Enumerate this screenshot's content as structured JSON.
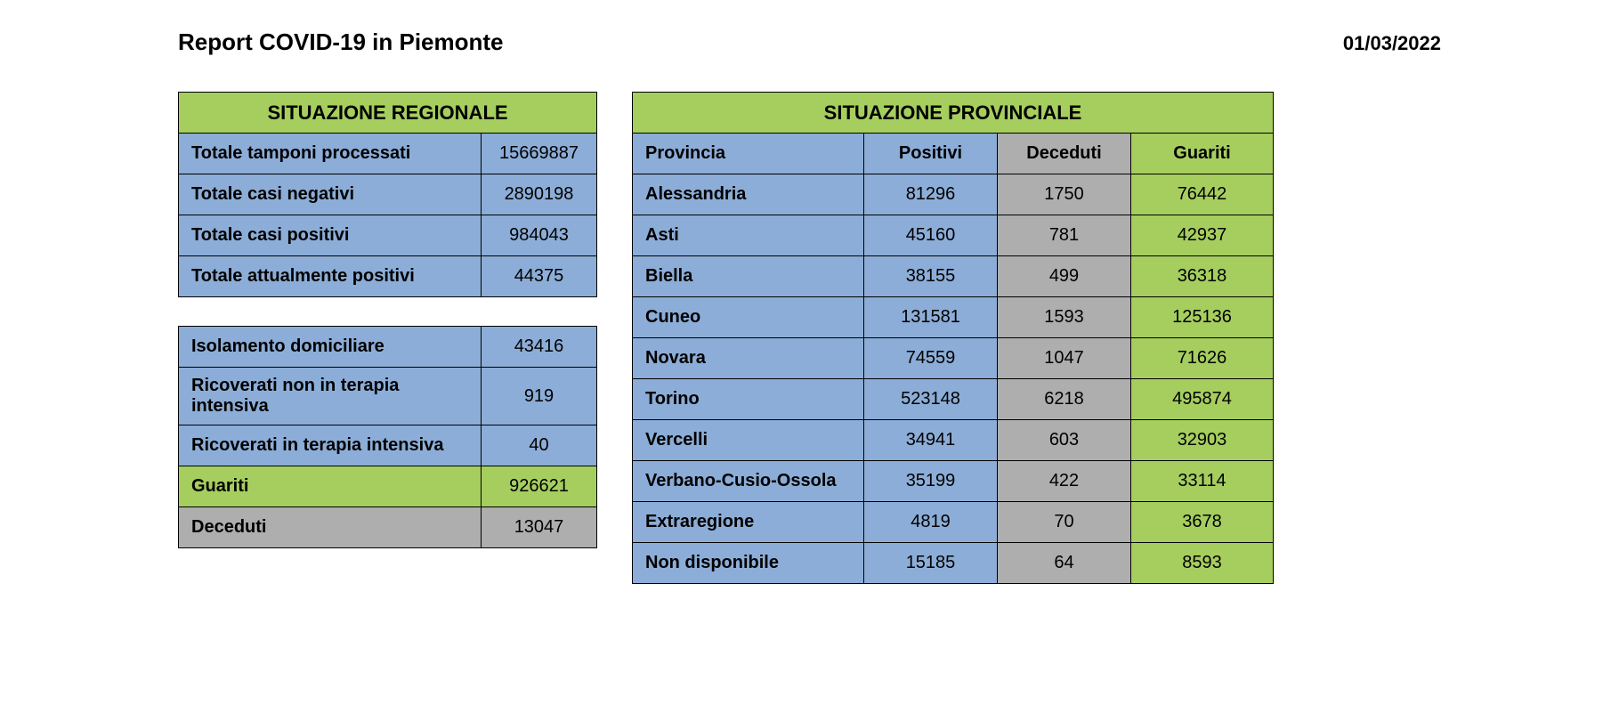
{
  "colors": {
    "green": "#a6ce5f",
    "blue": "#8cadd7",
    "grey": "#aeaeae",
    "border": "#000000"
  },
  "header": {
    "title": "Report COVID-19 in Piemonte",
    "date": "01/03/2022"
  },
  "regional": {
    "section_title": "SITUAZIONE REGIONALE",
    "col_widths": [
      "340px",
      "130px"
    ],
    "rows": [
      {
        "label": "Totale tamponi processati",
        "value": "15669887",
        "label_bg": "blue",
        "val_bg": "blue"
      },
      {
        "label": "Totale casi negativi",
        "value": "2890198",
        "label_bg": "blue",
        "val_bg": "blue"
      },
      {
        "label": "Totale casi positivi",
        "value": "984043",
        "label_bg": "blue",
        "val_bg": "blue"
      },
      {
        "label": "Totale attualmente positivi",
        "value": "44375",
        "label_bg": "blue",
        "val_bg": "blue"
      }
    ]
  },
  "status": {
    "col_widths": [
      "340px",
      "130px"
    ],
    "rows": [
      {
        "label": "Isolamento domiciliare",
        "value": "43416",
        "label_bg": "blue",
        "val_bg": "blue"
      },
      {
        "label": "Ricoverati non in terapia intensiva",
        "value": "919",
        "label_bg": "blue",
        "val_bg": "blue"
      },
      {
        "label": "Ricoverati in terapia intensiva",
        "value": "40",
        "label_bg": "blue",
        "val_bg": "blue"
      },
      {
        "label": "Guariti",
        "value": "926621",
        "label_bg": "green",
        "val_bg": "green"
      },
      {
        "label": "Deceduti",
        "value": "13047",
        "label_bg": "grey",
        "val_bg": "grey"
      }
    ]
  },
  "provincial": {
    "section_title": "SITUAZIONE PROVINCIALE",
    "col_widths": [
      "260px",
      "150px",
      "150px",
      "160px"
    ],
    "columns": [
      {
        "label": "Provincia",
        "bg": "blue",
        "align": "left"
      },
      {
        "label": "Positivi",
        "bg": "blue",
        "align": "center"
      },
      {
        "label": "Deceduti",
        "bg": "grey",
        "align": "center"
      },
      {
        "label": "Guariti",
        "bg": "green",
        "align": "center"
      }
    ],
    "rows": [
      {
        "name": "Alessandria",
        "positivi": "81296",
        "deceduti": "1750",
        "guariti": "76442"
      },
      {
        "name": "Asti",
        "positivi": "45160",
        "deceduti": "781",
        "guariti": "42937"
      },
      {
        "name": "Biella",
        "positivi": "38155",
        "deceduti": "499",
        "guariti": "36318"
      },
      {
        "name": "Cuneo",
        "positivi": "131581",
        "deceduti": "1593",
        "guariti": "125136"
      },
      {
        "name": "Novara",
        "positivi": "74559",
        "deceduti": "1047",
        "guariti": "71626"
      },
      {
        "name": "Torino",
        "positivi": "523148",
        "deceduti": "6218",
        "guariti": "495874"
      },
      {
        "name": "Vercelli",
        "positivi": "34941",
        "deceduti": "603",
        "guariti": "32903"
      },
      {
        "name": "Verbano-Cusio-Ossola",
        "positivi": "35199",
        "deceduti": "422",
        "guariti": "33114"
      },
      {
        "name": "Extraregione",
        "positivi": "4819",
        "deceduti": "70",
        "guariti": "3678"
      },
      {
        "name": "Non disponibile",
        "positivi": "15185",
        "deceduti": "64",
        "guariti": "8593"
      }
    ]
  }
}
